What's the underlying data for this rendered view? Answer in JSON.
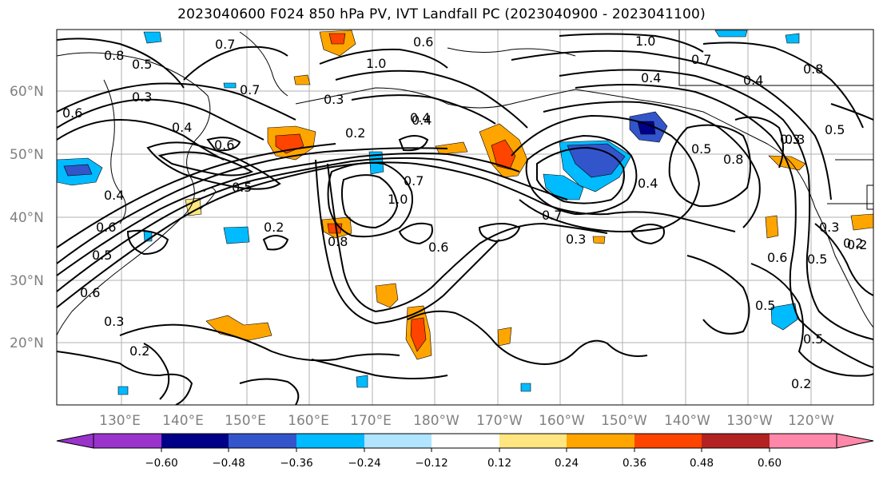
{
  "title": "2023040600 F024 850 hPa PV, IVT Landfall PC (2023040900 - 2023041100)",
  "map": {
    "lat_labels": [
      "60°N",
      "50°N",
      "40°N",
      "30°N",
      "20°N"
    ],
    "lon_labels": [
      "130°E",
      "140°E",
      "150°E",
      "160°E",
      "170°E",
      "180°W",
      "170°W",
      "160°W",
      "150°W",
      "140°W",
      "130°W",
      "120°W"
    ],
    "contour_labels": [
      "0.8",
      "0.5",
      "0.6",
      "1.0",
      "0.7",
      "0.6",
      "1.0",
      "0.7",
      "0.4",
      "0.4",
      "0.8",
      "0.3",
      "0.3",
      "0.7",
      "0.2",
      "0.4",
      "0.5",
      "0.6",
      "0.4",
      "0.3",
      "0.8",
      "0.5",
      "0.5",
      "0.7",
      "0.4",
      "0.2",
      "0.4",
      "0.6",
      "0.5",
      "1.0",
      "0.7",
      "0.2",
      "0.6",
      "0.5",
      "0.3",
      "0.8",
      "0.3",
      "0.3",
      "0.6",
      "0.3",
      "0.2",
      "0.2",
      "0.5",
      "0.6",
      "0.4",
      "0.5",
      "0.2"
    ],
    "line_color": "#000000",
    "grid_color": "#b0b0b0"
  },
  "colorbar": {
    "ticks": [
      "−0.60",
      "−0.48",
      "−0.36",
      "−0.24",
      "−0.12",
      "0.12",
      "0.24",
      "0.36",
      "0.48",
      "0.60"
    ],
    "colors": [
      "#9933cc",
      "#000088",
      "#3355cc",
      "#00bbff",
      "#b0e4ff",
      "#ffffff",
      "#ffe680",
      "#ffa500",
      "#ff4400",
      "#b22222",
      "#ff88aa"
    ]
  }
}
